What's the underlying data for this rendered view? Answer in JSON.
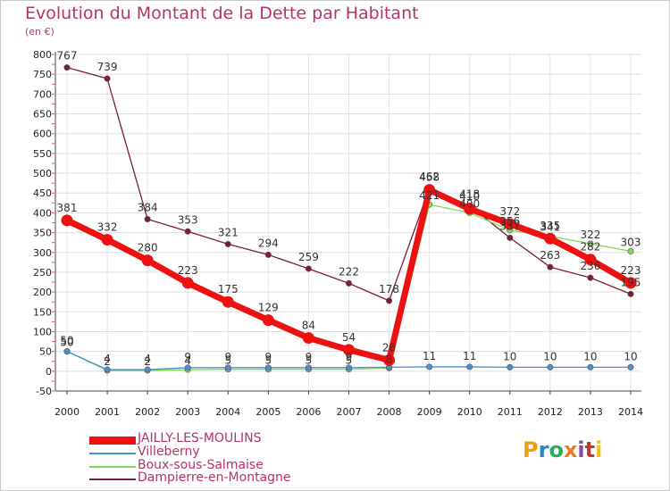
{
  "header": {
    "title": "Evolution du Montant de la Dette par Habitant",
    "unit": "(en €)"
  },
  "chart_data": {
    "type": "line",
    "title": "Evolution du Montant de la Dette par Habitant",
    "ylabel": "(en €)",
    "xlabel": "",
    "ylim": [
      -50,
      800
    ],
    "yticks": [
      -50,
      0,
      50,
      100,
      150,
      200,
      250,
      300,
      350,
      400,
      450,
      500,
      550,
      600,
      650,
      700,
      750,
      800
    ],
    "x": [
      "2000",
      "2001",
      "2002",
      "2003",
      "2004",
      "2005",
      "2006",
      "2007",
      "2008",
      "2009",
      "2010",
      "2011",
      "2012",
      "2013",
      "2014"
    ],
    "legend_position": "bottom-left",
    "series": [
      {
        "name": "Dampierre-en-Montagne",
        "color": "#7a1e32",
        "values": [
          767,
          739,
          384,
          353,
          321,
          294,
          259,
          222,
          178,
          462,
          418,
          337,
          263,
          236,
          195
        ],
        "labels": [
          "767",
          "739",
          "384",
          "353",
          "321",
          "294",
          "259",
          "222",
          "178",
          "462",
          "418",
          "337",
          "263",
          "236",
          "195"
        ]
      },
      {
        "name": "Boux-sous-Salmaise",
        "color": "#7ed957",
        "values": [
          50,
          2,
          2,
          4,
          5,
          5,
          5,
          5,
          8,
          421,
          400,
          356,
          341,
          322,
          303
        ],
        "labels": [
          "50",
          "2",
          "2",
          "4",
          "5",
          "5",
          "5",
          "5",
          "8",
          "421",
          "400",
          "356",
          "341",
          "322",
          "303"
        ]
      },
      {
        "name": "Villeberny",
        "color": "#4a8fd0",
        "values": [
          50,
          4,
          4,
          9,
          9,
          9,
          9,
          9,
          10,
          11,
          11,
          10,
          10,
          10,
          10
        ],
        "labels": [
          "50",
          "4",
          "4",
          "9",
          "9",
          "9",
          "9",
          "9",
          "",
          "11",
          "11",
          "10",
          "10",
          "10",
          "10"
        ]
      },
      {
        "name": "JAILLY-LES-MOULINS",
        "color": "#ee1111",
        "values": [
          381,
          332,
          280,
          223,
          175,
          129,
          84,
          54,
          28,
          458,
          410,
          372,
          335,
          282,
          223
        ],
        "labels": [
          "381",
          "332",
          "280",
          "223",
          "175",
          "129",
          "84",
          "54",
          "28",
          "458",
          "410",
          "372",
          "335",
          "282",
          "223"
        ]
      }
    ]
  },
  "legend": {
    "items": [
      {
        "name": "JAILLY-LES-MOULINS",
        "color": "#ee1111"
      },
      {
        "name": "Villeberny",
        "color": "#4a8fd0"
      },
      {
        "name": "Boux-sous-Salmaise",
        "color": "#7ed957"
      },
      {
        "name": "Dampierre-en-Montagne",
        "color": "#7a1e32"
      }
    ]
  },
  "logo": {
    "text": "Proxiti",
    "colors": [
      "#f39c12",
      "#2e86c1",
      "#27ae60",
      "#e67e22",
      "#8e44ad",
      "#c0392b",
      "#f1c40f"
    ]
  }
}
